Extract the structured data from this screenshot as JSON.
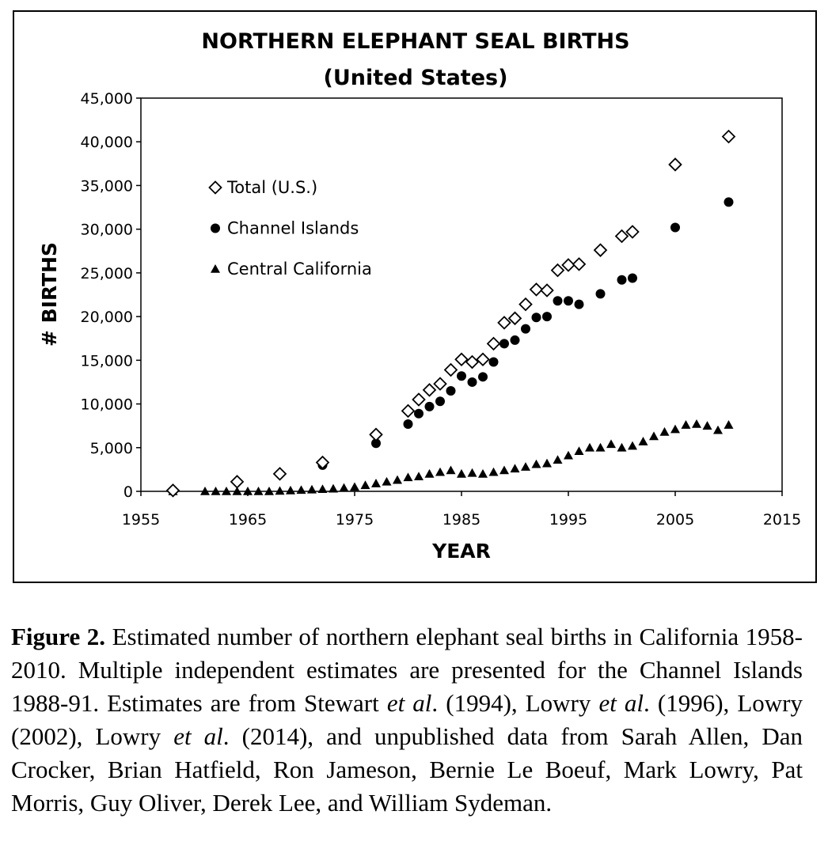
{
  "chart_data": {
    "type": "scatter",
    "title": "NORTHERN ELEPHANT SEAL BIRTHS",
    "subtitle": "(United States)",
    "xlabel": "YEAR",
    "ylabel": "# BIRTHS",
    "xlim": [
      1955,
      2015
    ],
    "ylim": [
      0,
      45000
    ],
    "xticks": [
      1955,
      1965,
      1975,
      1985,
      1995,
      2005,
      2015
    ],
    "yticks": [
      0,
      5000,
      10000,
      15000,
      20000,
      25000,
      30000,
      35000,
      40000,
      45000
    ],
    "ytick_labels": [
      "0",
      "5,000",
      "10,000",
      "15,000",
      "20,000",
      "25,000",
      "30,000",
      "35,000",
      "40,000",
      "45,000"
    ],
    "grid": false,
    "legend_position": "upper-left",
    "series": [
      {
        "name": "Total (U.S.)",
        "marker": "open-diamond",
        "points": [
          [
            1958,
            100
          ],
          [
            1964,
            1100
          ],
          [
            1968,
            2000
          ],
          [
            1972,
            3300
          ],
          [
            1977,
            6500
          ],
          [
            1980,
            9200
          ],
          [
            1981,
            10500
          ],
          [
            1982,
            11600
          ],
          [
            1983,
            12300
          ],
          [
            1984,
            13900
          ],
          [
            1985,
            15100
          ],
          [
            1986,
            14800
          ],
          [
            1987,
            15100
          ],
          [
            1988,
            16900
          ],
          [
            1989,
            19300
          ],
          [
            1990,
            19800
          ],
          [
            1991,
            21400
          ],
          [
            1992,
            23100
          ],
          [
            1993,
            23000
          ],
          [
            1994,
            25300
          ],
          [
            1995,
            25900
          ],
          [
            1996,
            26000
          ],
          [
            1998,
            27600
          ],
          [
            2000,
            29200
          ],
          [
            2001,
            29700
          ],
          [
            2005,
            37400
          ],
          [
            2010,
            40600
          ]
        ]
      },
      {
        "name": "Channel Islands",
        "marker": "filled-circle",
        "points": [
          [
            1958,
            100
          ],
          [
            1964,
            1100
          ],
          [
            1968,
            2000
          ],
          [
            1972,
            3000
          ],
          [
            1977,
            5500
          ],
          [
            1980,
            7700
          ],
          [
            1981,
            8900
          ],
          [
            1982,
            9700
          ],
          [
            1983,
            10300
          ],
          [
            1984,
            11500
          ],
          [
            1985,
            13200
          ],
          [
            1986,
            12500
          ],
          [
            1987,
            13100
          ],
          [
            1988,
            14800
          ],
          [
            1989,
            16900
          ],
          [
            1990,
            17300
          ],
          [
            1991,
            18600
          ],
          [
            1992,
            19900
          ],
          [
            1993,
            20000
          ],
          [
            1994,
            21800
          ],
          [
            1995,
            21800
          ],
          [
            1996,
            21400
          ],
          [
            1998,
            22600
          ],
          [
            2000,
            24200
          ],
          [
            2001,
            24400
          ],
          [
            2005,
            30200
          ],
          [
            2010,
            33100
          ]
        ]
      },
      {
        "name": "Central California",
        "marker": "filled-triangle",
        "points": [
          [
            1958,
            0
          ],
          [
            1961,
            0
          ],
          [
            1962,
            0
          ],
          [
            1963,
            0
          ],
          [
            1964,
            0
          ],
          [
            1965,
            0
          ],
          [
            1966,
            0
          ],
          [
            1967,
            0
          ],
          [
            1968,
            50
          ],
          [
            1969,
            100
          ],
          [
            1970,
            150
          ],
          [
            1971,
            200
          ],
          [
            1972,
            250
          ],
          [
            1973,
            300
          ],
          [
            1974,
            400
          ],
          [
            1975,
            500
          ],
          [
            1976,
            700
          ],
          [
            1977,
            900
          ],
          [
            1978,
            1100
          ],
          [
            1979,
            1300
          ],
          [
            1980,
            1600
          ],
          [
            1981,
            1700
          ],
          [
            1982,
            2000
          ],
          [
            1983,
            2200
          ],
          [
            1984,
            2400
          ],
          [
            1985,
            2000
          ],
          [
            1986,
            2100
          ],
          [
            1987,
            2000
          ],
          [
            1988,
            2200
          ],
          [
            1989,
            2400
          ],
          [
            1990,
            2600
          ],
          [
            1991,
            2800
          ],
          [
            1992,
            3100
          ],
          [
            1993,
            3200
          ],
          [
            1994,
            3600
          ],
          [
            1995,
            4100
          ],
          [
            1996,
            4600
          ],
          [
            1997,
            5000
          ],
          [
            1998,
            5000
          ],
          [
            1999,
            5400
          ],
          [
            2000,
            5000
          ],
          [
            2001,
            5200
          ],
          [
            2002,
            5700
          ],
          [
            2003,
            6300
          ],
          [
            2004,
            6800
          ],
          [
            2005,
            7100
          ],
          [
            2006,
            7600
          ],
          [
            2007,
            7700
          ],
          [
            2008,
            7500
          ],
          [
            2009,
            7000
          ],
          [
            2010,
            7600
          ]
        ]
      }
    ]
  },
  "caption": {
    "lead": "Figure 2.",
    "s1": "  Estimated number of northern elephant seal births in California 1958-2010. Multiple independent estimates are presented for the Channel Islands 1988-91.  Estimates are from Stewart ",
    "etal": "et al",
    "s2": ". (1994), Lowry ",
    "s3": ". (1996), Lowry (2002), Lowry ",
    "s4": ". (2014), and unpublished data from Sarah Allen, Dan Crocker, Brian Hatfield, Ron Jameson, Bernie Le Boeuf, Mark Lowry, Pat Morris, Guy Oliver, Derek Lee, and William Sydeman."
  }
}
